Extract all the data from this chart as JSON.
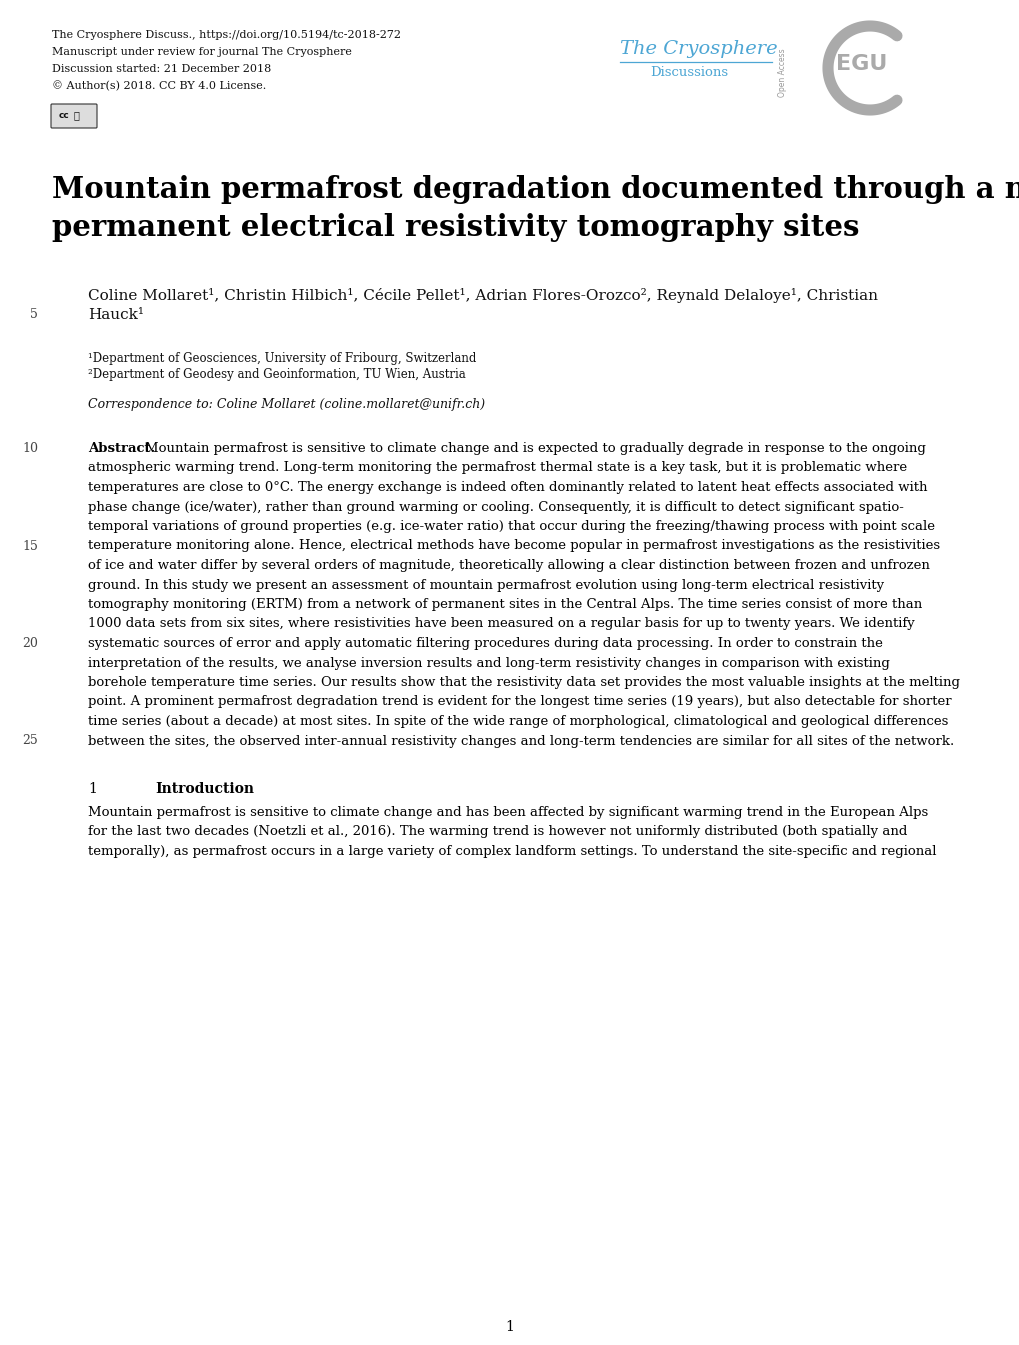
{
  "background_color": "#ffffff",
  "header_line1": "The Cryosphere Discuss., https://doi.org/10.5194/tc-2018-272",
  "header_line2": "Manuscript under review for journal The Cryosphere",
  "header_line3": "Discussion started: 21 December 2018",
  "header_line4": "© Author(s) 2018. CC BY 4.0 License.",
  "journal_name": "The Cryosphere",
  "journal_sub": "Discussions",
  "title_line1": "Mountain permafrost degradation documented through a network of",
  "title_line2": "permanent electrical resistivity tomography sites",
  "authors_line1": "Coline Mollaret¹, Christin Hilbich¹, Cécile Pellet¹, Adrian Flores-Orozco², Reynald Delaloye¹, Christian",
  "authors_line2": "Hauck¹",
  "affil1": "¹Department of Geosciences, University of Fribourg, Switzerland",
  "affil2": "²Department of Geodesy and Geoinformation, TU Wien, Austria",
  "correspondence": "Correspondence to: Coline Mollaret (coline.mollaret@unifr.ch)",
  "abstract_lines": [
    "Abstract. Mountain permafrost is sensitive to climate change and is expected to gradually degrade in response to the ongoing",
    "atmospheric warming trend. Long-term monitoring the permafrost thermal state is a key task, but it is problematic where",
    "temperatures are close to 0°C. The energy exchange is indeed often dominantly related to latent heat effects associated with",
    "phase change (ice/water), rather than ground warming or cooling. Consequently, it is difficult to detect significant spatio-",
    "temporal variations of ground properties (e.g. ice-water ratio) that occur during the freezing/thawing process with point scale",
    "temperature monitoring alone. Hence, electrical methods have become popular in permafrost investigations as the resistivities",
    "of ice and water differ by several orders of magnitude, theoretically allowing a clear distinction between frozen and unfrozen",
    "ground. In this study we present an assessment of mountain permafrost evolution using long-term electrical resistivity",
    "tomography monitoring (ERTM) from a network of permanent sites in the Central Alps. The time series consist of more than",
    "1000 data sets from six sites, where resistivities have been measured on a regular basis for up to twenty years. We identify",
    "systematic sources of error and apply automatic filtering procedures during data processing. In order to constrain the",
    "interpretation of the results, we analyse inversion results and long-term resistivity changes in comparison with existing",
    "borehole temperature time series. Our results show that the resistivity data set provides the most valuable insights at the melting",
    "point. A prominent permafrost degradation trend is evident for the longest time series (19 years), but also detectable for shorter",
    "time series (about a decade) at most sites. In spite of the wide range of morphological, climatological and geological differences",
    "between the sites, the observed inter-annual resistivity changes and long-term tendencies are similar for all sites of the network."
  ],
  "intro_lines": [
    "Mountain permafrost is sensitive to climate change and has been affected by significant warming trend in the European Alps",
    "for the last two decades (Noetzli et al., 2016). The warming trend is however not uniformly distributed (both spatially and",
    "temporally), as permafrost occurs in a large variety of complex landform settings. To understand the site-specific and regional"
  ],
  "page_number": "1"
}
